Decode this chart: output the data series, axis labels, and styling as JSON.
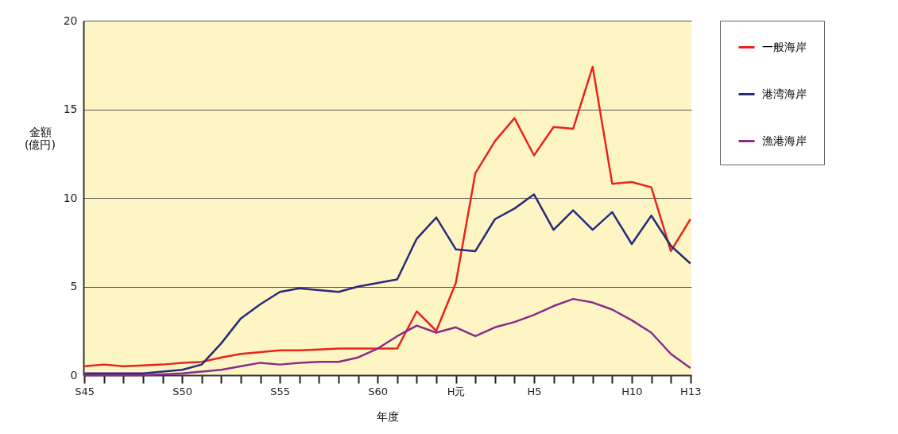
{
  "chart_data": {
    "type": "line",
    "xlabel": "年度",
    "ylabel": "金額\n(億円)",
    "categories": [
      "S45",
      null,
      null,
      null,
      null,
      "S50",
      null,
      null,
      null,
      null,
      "S55",
      null,
      null,
      null,
      null,
      "S60",
      null,
      null,
      null,
      "H元",
      null,
      null,
      null,
      "H5",
      null,
      null,
      null,
      null,
      "H10",
      null,
      null,
      "H13"
    ],
    "series": [
      {
        "name": "一般海岸",
        "color": "#e8241e",
        "values": [
          0.5,
          0.6,
          0.5,
          0.55,
          0.6,
          0.7,
          0.75,
          1.0,
          1.2,
          1.3,
          1.4,
          1.4,
          1.45,
          1.5,
          1.5,
          1.5,
          1.5,
          3.6,
          2.5,
          5.2,
          11.4,
          13.2,
          14.5,
          12.4,
          14.0,
          13.9,
          17.4,
          10.8,
          10.9,
          10.6,
          7.0,
          8.8
        ]
      },
      {
        "name": "港湾海岸",
        "color": "#2a2a7a",
        "values": [
          0.1,
          0.1,
          0.1,
          0.1,
          0.2,
          0.3,
          0.6,
          1.8,
          3.2,
          4.0,
          4.7,
          4.9,
          4.8,
          4.7,
          5.0,
          5.2,
          5.4,
          7.7,
          8.9,
          7.1,
          7.0,
          8.8,
          9.4,
          10.2,
          8.2,
          9.3,
          8.2,
          9.2,
          7.4,
          9.0,
          7.3,
          6.3
        ]
      },
      {
        "name": "漁港海岸",
        "color": "#8a2a8a",
        "values": [
          0,
          0,
          0,
          0,
          0.05,
          0.1,
          0.2,
          0.3,
          0.5,
          0.7,
          0.6,
          0.7,
          0.75,
          0.75,
          1.0,
          1.5,
          2.2,
          2.8,
          2.4,
          2.7,
          2.2,
          2.7,
          3.0,
          3.4,
          3.9,
          4.3,
          4.1,
          3.7,
          3.1,
          2.4,
          1.2,
          0.4
        ]
      }
    ],
    "ylim": [
      0,
      20
    ],
    "yticks": [
      0,
      5,
      10,
      15,
      20
    ],
    "grid": "y",
    "legend": "right"
  }
}
